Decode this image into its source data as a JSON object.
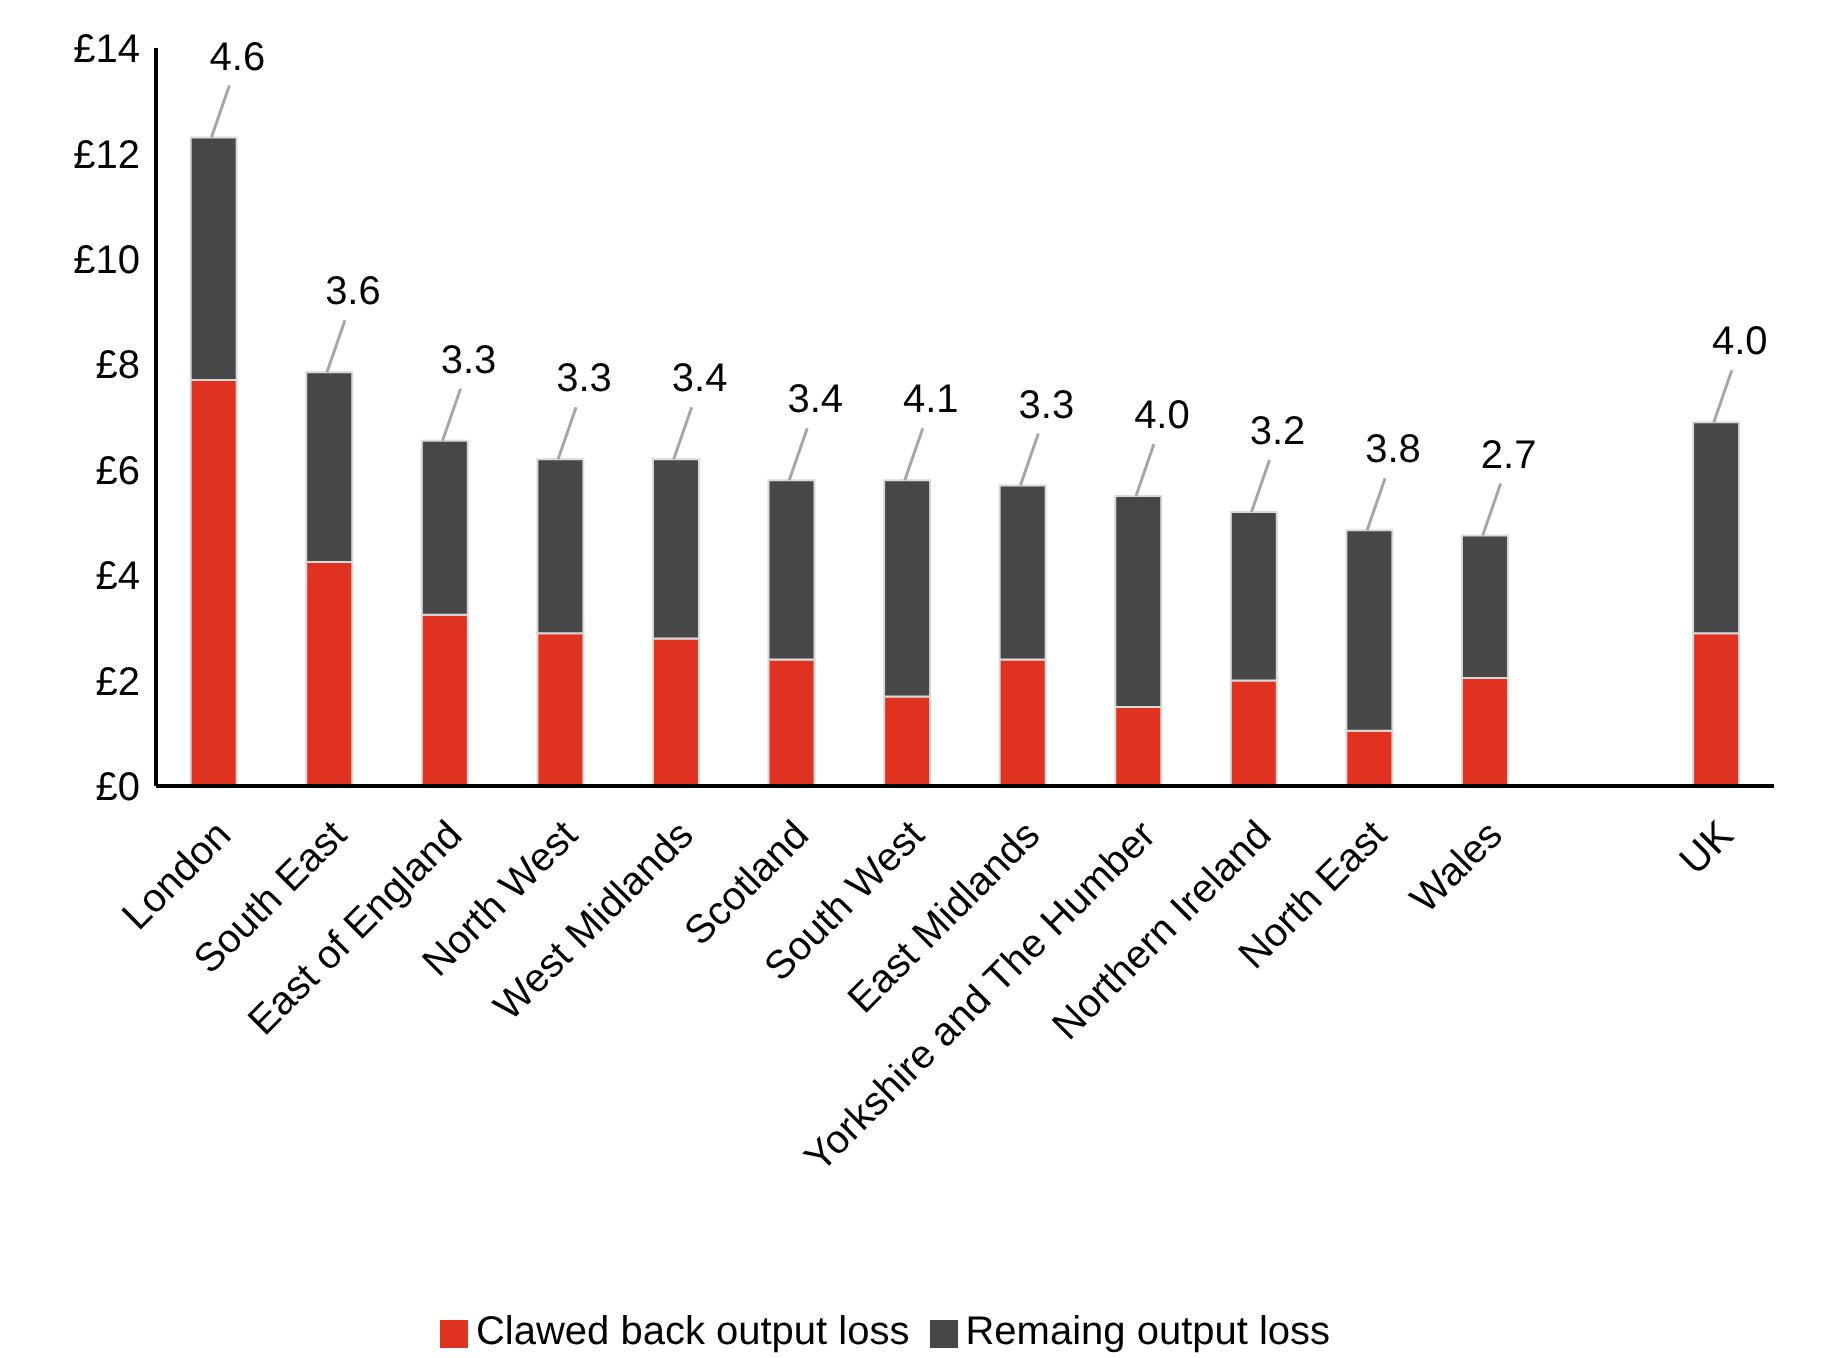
{
  "chart_data": {
    "type": "bar",
    "stacked": true,
    "categories": [
      "London",
      "South East",
      "East of England",
      "North West",
      "West Midlands",
      "Scotland",
      "South West",
      "East Midlands",
      "Yorkshire and The Humber",
      "Northern Ireland",
      "North East",
      "Wales",
      null,
      "UK"
    ],
    "series": [
      {
        "name": "Clawed back output loss",
        "color": "#e03220",
        "values": [
          7.7,
          4.25,
          3.25,
          2.9,
          2.8,
          2.4,
          1.7,
          2.4,
          1.5,
          2.0,
          1.05,
          2.05,
          null,
          2.9
        ]
      },
      {
        "name": "Remaing output loss",
        "color": "#474747",
        "values": [
          4.6,
          3.6,
          3.3,
          3.3,
          3.4,
          3.4,
          4.1,
          3.3,
          4.0,
          3.2,
          3.8,
          2.7,
          null,
          4.0
        ],
        "value_labels": [
          "4.6",
          "3.6",
          "3.3",
          "3.3",
          "3.4",
          "3.4",
          "4.1",
          "3.3",
          "4.0",
          "3.2",
          "3.8",
          "2.7",
          null,
          "4.0"
        ]
      }
    ],
    "ylim": [
      0,
      14
    ],
    "yticks": [
      {
        "value": 0,
        "label": "£0"
      },
      {
        "value": 2,
        "label": "£2"
      },
      {
        "value": 4,
        "label": "£4"
      },
      {
        "value": 6,
        "label": "£6"
      },
      {
        "value": 8,
        "label": "£8"
      },
      {
        "value": 10,
        "label": "£10"
      },
      {
        "value": 12,
        "label": "£12"
      },
      {
        "value": 14,
        "label": "£14"
      }
    ],
    "grid": false,
    "legend": "bottom"
  }
}
